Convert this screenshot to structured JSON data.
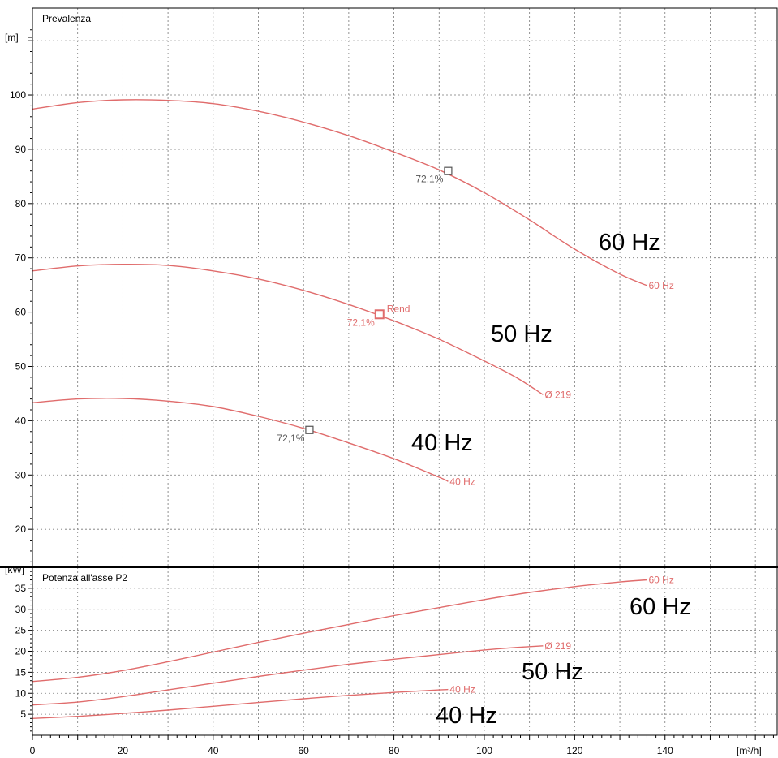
{
  "chart_data": [
    {
      "type": "line",
      "title": "Prevalenza",
      "ylabel": "[m]",
      "xlim": [
        0,
        165
      ],
      "ylim": [
        13,
        116
      ],
      "x_ticks": [
        0,
        20,
        40,
        60,
        80,
        100,
        120,
        140
      ],
      "y_ticks": [
        20,
        30,
        40,
        50,
        60,
        70,
        80,
        90,
        100
      ],
      "grid": true,
      "color": "#e06c6c",
      "series": [
        {
          "name": "60 Hz",
          "end_label": "60 Hz",
          "big_label": "60 Hz",
          "x": [
            0,
            10,
            20,
            30,
            40,
            50,
            60,
            70,
            80,
            90,
            100,
            110,
            120,
            130,
            136
          ],
          "y": [
            97.4,
            98.6,
            99.1,
            99.0,
            98.4,
            97.0,
            95.0,
            92.5,
            89.5,
            86.2,
            82.0,
            77.0,
            71.6,
            67.0,
            64.9
          ]
        },
        {
          "name": "Ø 219",
          "end_label": "Ø 219",
          "big_label": "50 Hz",
          "x": [
            0,
            10,
            20,
            30,
            40,
            50,
            60,
            70,
            80,
            90,
            100,
            107,
            113
          ],
          "y": [
            67.6,
            68.5,
            68.8,
            68.6,
            67.6,
            66.1,
            64.0,
            61.4,
            58.4,
            55.0,
            51.0,
            48.0,
            44.8
          ]
        },
        {
          "name": "40 Hz",
          "end_label": "40 Hz",
          "big_label": "40 Hz",
          "x": [
            0,
            10,
            20,
            30,
            40,
            50,
            60,
            70,
            80,
            90,
            92
          ],
          "y": [
            43.3,
            44.0,
            44.1,
            43.6,
            42.6,
            40.8,
            38.6,
            35.9,
            33.0,
            29.6,
            28.8
          ]
        }
      ],
      "markers": [
        {
          "x": 92,
          "y": 86,
          "label": "72,1%",
          "color": "#555555"
        },
        {
          "x": 76.8,
          "y": 59.6,
          "label": "72,1%",
          "color": "#e06c6c",
          "note": "Rend"
        },
        {
          "x": 61.3,
          "y": 38.3,
          "label": "72,1%",
          "color": "#555555"
        }
      ]
    },
    {
      "type": "line",
      "title": "Potenza all'asse P2",
      "ylabel": "[kW]",
      "xlabel": "[m³/h]",
      "xlim": [
        0,
        165
      ],
      "ylim": [
        0,
        40
      ],
      "x_ticks": [
        0,
        20,
        40,
        60,
        80,
        100,
        120,
        140
      ],
      "y_ticks": [
        5,
        10,
        15,
        20,
        25,
        30,
        35
      ],
      "grid": true,
      "color": "#e06c6c",
      "series": [
        {
          "name": "60 Hz",
          "end_label": "60 Hz",
          "big_label": "60 Hz",
          "x": [
            0,
            10,
            20,
            30,
            40,
            50,
            60,
            70,
            80,
            90,
            100,
            110,
            120,
            130,
            136
          ],
          "y": [
            12.8,
            13.8,
            15.4,
            17.5,
            19.8,
            22.1,
            24.3,
            26.4,
            28.5,
            30.4,
            32.3,
            34.0,
            35.4,
            36.5,
            37.0
          ]
        },
        {
          "name": "Ø 219",
          "end_label": "Ø 219",
          "big_label": "50 Hz",
          "x": [
            0,
            10,
            20,
            30,
            40,
            50,
            60,
            70,
            80,
            90,
            100,
            107,
            113
          ],
          "y": [
            7.2,
            7.9,
            9.2,
            10.8,
            12.4,
            14.0,
            15.5,
            16.9,
            18.1,
            19.2,
            20.3,
            20.9,
            21.3
          ]
        },
        {
          "name": "40 Hz",
          "end_label": "40 Hz",
          "big_label": "40 Hz",
          "x": [
            0,
            10,
            20,
            30,
            40,
            50,
            60,
            70,
            80,
            90,
            92
          ],
          "y": [
            4.0,
            4.5,
            5.2,
            6.0,
            6.9,
            7.8,
            8.7,
            9.5,
            10.2,
            10.8,
            10.9
          ]
        }
      ]
    }
  ]
}
